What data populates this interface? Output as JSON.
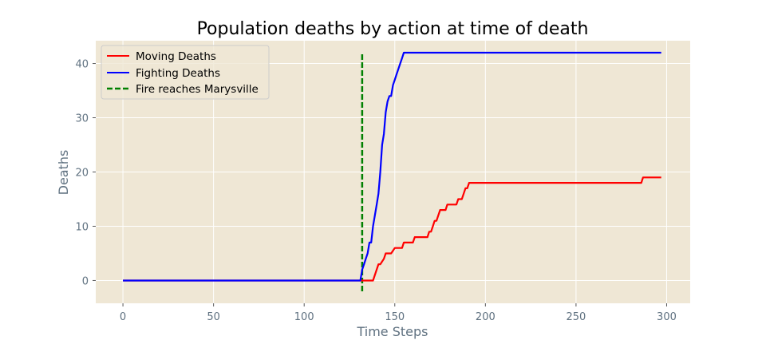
{
  "chart_data": {
    "type": "line",
    "title": "Population deaths by action at time of death",
    "xlabel": "Time Steps",
    "ylabel": "Deaths",
    "xlim": [
      -15,
      313
    ],
    "ylim": [
      -4.2,
      44.2
    ],
    "xticks": [
      0,
      50,
      100,
      150,
      200,
      250,
      300
    ],
    "yticks": [
      0,
      10,
      20,
      30,
      40
    ],
    "grid": true,
    "legend_position": "top-left",
    "background_color": "#efe7d5",
    "series": [
      {
        "name": "Moving Deaths",
        "color": "#ff0000",
        "style": "solid",
        "x": [
          0,
          131,
          138,
          141,
          142,
          144,
          145,
          147,
          148,
          150,
          151,
          154,
          155,
          160,
          161,
          168,
          169,
          170,
          171,
          172,
          173,
          174,
          175,
          176,
          178,
          179,
          180,
          184,
          185,
          187,
          188,
          189,
          190,
          191,
          192,
          286,
          287,
          297
        ],
        "y": [
          0,
          0,
          0,
          3,
          3,
          4,
          5,
          5,
          5,
          6,
          6,
          6,
          7,
          7,
          8,
          8,
          9,
          9,
          10,
          11,
          11,
          12,
          13,
          13,
          13,
          14,
          14,
          14,
          15,
          15,
          16,
          17,
          17,
          18,
          18,
          18,
          19,
          19
        ]
      },
      {
        "name": "Fighting Deaths",
        "color": "#0000ff",
        "style": "solid",
        "x": [
          0,
          131,
          132,
          133,
          134,
          135,
          136,
          137,
          138,
          139,
          140,
          141,
          142,
          143,
          144,
          145,
          146,
          147,
          148,
          149,
          150,
          151,
          152,
          153,
          154,
          155,
          156,
          297
        ],
        "y": [
          0,
          0,
          2,
          3,
          4,
          5,
          7,
          7,
          10,
          12,
          14,
          16,
          20,
          25,
          27,
          31,
          33,
          34,
          34,
          36,
          37,
          38,
          39,
          40,
          41,
          42,
          42,
          42
        ]
      },
      {
        "name": "Fire reaches Marysville",
        "color": "#008000",
        "style": "dashed",
        "x": [
          132,
          132
        ],
        "y": [
          -2,
          42
        ]
      }
    ]
  }
}
